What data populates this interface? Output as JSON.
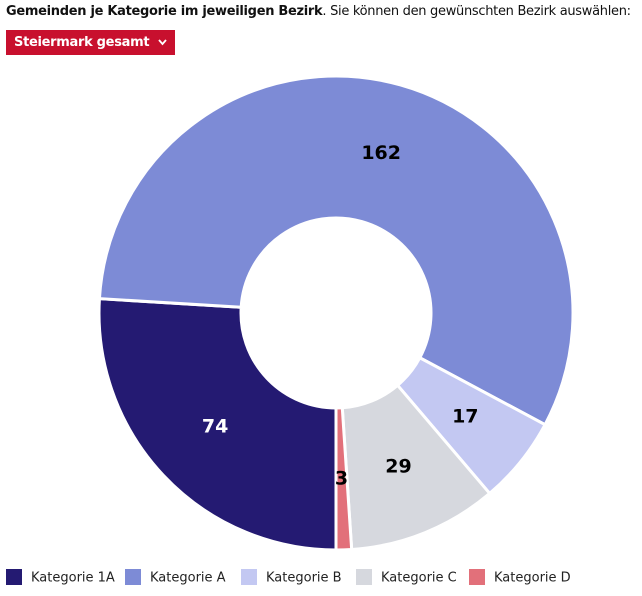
{
  "header": {
    "title_bold": "Gemeinden je Kategorie im jeweiligen Bezirk",
    "title_rest": ". Sie können den gewünschten Bezirk auswählen:",
    "dropdown": "Steiermark gesamt"
  },
  "chart_data": {
    "type": "pie",
    "categories": [
      "Kategorie 1A",
      "Kategorie A",
      "Kategorie B",
      "Kategorie C",
      "Kategorie D"
    ],
    "values": [
      74,
      162,
      17,
      29,
      3
    ],
    "colors": [
      "#241a72",
      "#7d8bd6",
      "#c3c8f2",
      "#d6d8de",
      "#e2707a"
    ],
    "legend": "bottom"
  }
}
